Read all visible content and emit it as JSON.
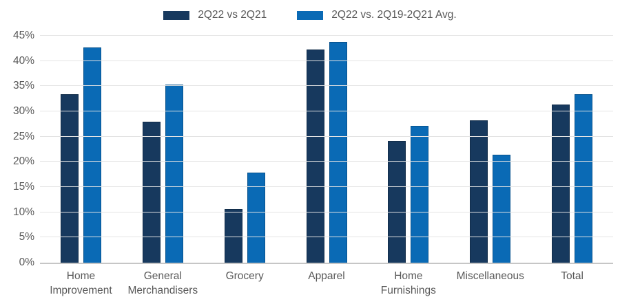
{
  "legend": {
    "items": [
      {
        "label": "2Q22 vs 2Q21",
        "color": "#17395e"
      },
      {
        "label": "2Q22 vs. 2Q19-2Q21 Avg.",
        "color": "#0a6ab5"
      }
    ]
  },
  "chart_data": {
    "type": "bar",
    "title": "",
    "xlabel": "",
    "ylabel": "",
    "categories": [
      "Home Improvement",
      "General Merchandisers",
      "Grocery",
      "Apparel",
      "Home Furnishings",
      "Miscellaneous",
      "Total"
    ],
    "series": [
      {
        "name": "2Q22 vs 2Q21",
        "color": "#17395e",
        "values": [
          33.4,
          27.9,
          10.6,
          42.3,
          24.2,
          28.2,
          31.3
        ]
      },
      {
        "name": "2Q22 vs. 2Q19-2Q21 Avg.",
        "color": "#0a6ab5",
        "values": [
          42.7,
          35.3,
          17.9,
          43.8,
          27.1,
          21.4,
          33.4
        ]
      }
    ],
    "ylim": [
      0,
      45
    ],
    "ytick_step": 5,
    "ytick_labels": [
      "45%",
      "40%",
      "35%",
      "30%",
      "25%",
      "20%",
      "15%",
      "10%",
      "5%",
      "0%"
    ],
    "grid": true,
    "legend_position": "top",
    "colors": {
      "gridline": "#e3e3e3",
      "axis_line": "#c6c6c6",
      "text": "#595959",
      "background": "#ffffff"
    }
  }
}
